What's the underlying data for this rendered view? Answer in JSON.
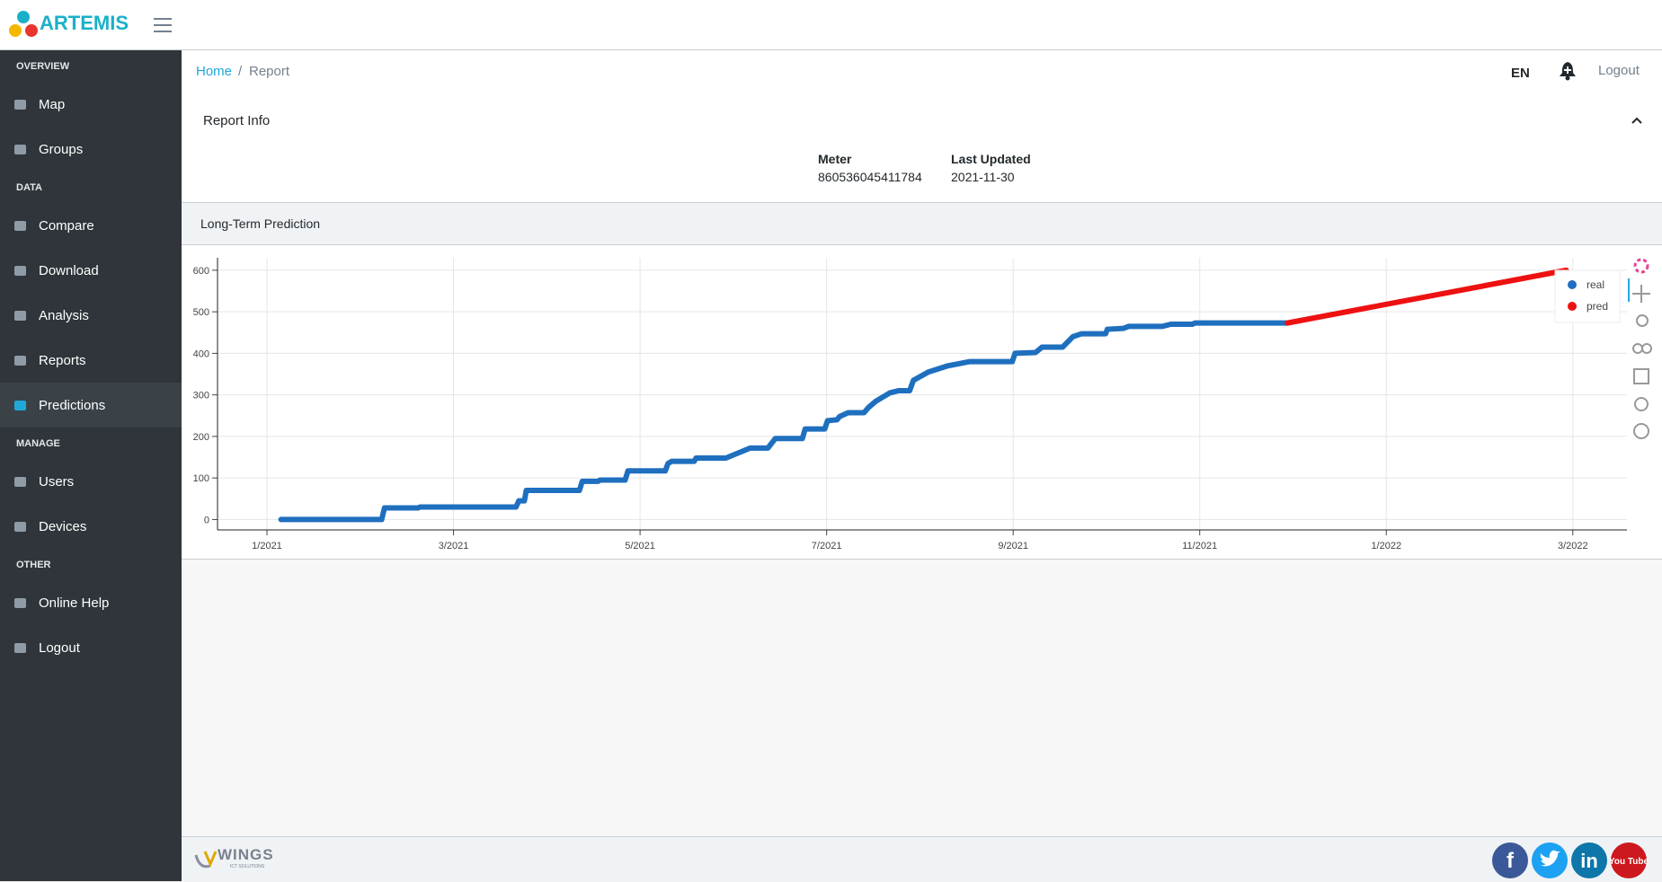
{
  "header": {
    "brand": "ARTEMIS"
  },
  "sidebar": {
    "sections": [
      {
        "title": "OVERVIEW",
        "items": [
          "Map",
          "Groups"
        ]
      },
      {
        "title": "DATA",
        "items": [
          "Compare",
          "Download",
          "Analysis",
          "Reports",
          "Predictions"
        ]
      },
      {
        "title": "MANAGE",
        "items": [
          "Users",
          "Devices"
        ]
      },
      {
        "title": "OTHER",
        "items": [
          "Online Help",
          "Logout"
        ]
      }
    ],
    "active": "Predictions"
  },
  "breadcrumb": {
    "items": [
      "Home",
      "Report"
    ],
    "separator": "/"
  },
  "topbar": {
    "language": "EN",
    "logout": "Logout"
  },
  "report_info": {
    "title": "Report Info",
    "fields": [
      {
        "label": "Meter",
        "value": "860536045411784"
      },
      {
        "label": "Last Updated",
        "value": "2021-11-30"
      }
    ]
  },
  "chart_panel": {
    "title": "Long-Term Prediction"
  },
  "chart_data": {
    "type": "line",
    "series": [
      {
        "name": "real",
        "color": "#1f6fbf",
        "x": [
          0.15,
          1.23,
          1.26,
          1.62,
          1.64,
          2.67,
          2.7,
          2.76,
          2.78,
          3.35,
          3.38,
          3.55,
          3.57,
          3.84,
          3.87,
          4.27,
          4.3,
          4.34,
          4.58,
          4.6,
          4.92,
          5.18,
          5.37,
          5.45,
          5.74,
          5.77,
          5.98,
          6.01,
          6.11,
          6.14,
          6.23,
          6.4,
          6.45,
          6.53,
          6.68,
          6.77,
          6.89,
          6.93,
          7.09,
          7.3,
          7.53,
          7.99,
          8.02,
          8.24,
          8.31,
          8.53,
          8.64,
          8.73,
          8.99,
          9.01,
          9.18,
          9.24,
          9.6,
          9.69,
          9.92,
          9.95,
          10.94
        ],
        "values": [
          0,
          0,
          28,
          28,
          30,
          30,
          45,
          45,
          70,
          70,
          92,
          92,
          95,
          95,
          117,
          117,
          135,
          140,
          140,
          148,
          148,
          172,
          172,
          195,
          195,
          218,
          218,
          238,
          240,
          248,
          257,
          257,
          270,
          285,
          305,
          310,
          310,
          335,
          355,
          370,
          380,
          380,
          400,
          402,
          415,
          415,
          440,
          447,
          447,
          458,
          460,
          465,
          465,
          470,
          470,
          473,
          473
        ]
      },
      {
        "name": "pred",
        "color": "#ee1111",
        "x": [
          10.94,
          13.93
        ],
        "values": [
          473,
          600
        ]
      }
    ],
    "xlim": [
      -0.53,
      14.58
    ],
    "xticks": [
      {
        "value": 0,
        "label": "1/2021"
      },
      {
        "value": 2,
        "label": "3/2021"
      },
      {
        "value": 4,
        "label": "5/2021"
      },
      {
        "value": 6,
        "label": "7/2021"
      },
      {
        "value": 8,
        "label": "9/2021"
      },
      {
        "value": 10,
        "label": "11/2021"
      },
      {
        "value": 12,
        "label": "1/2022"
      },
      {
        "value": 14,
        "label": "3/2022"
      }
    ],
    "ylim": [
      -25,
      630
    ],
    "yticks": [
      0,
      100,
      200,
      300,
      400,
      500,
      600
    ],
    "grid": true,
    "legend": "top-right"
  },
  "footer": {
    "logo": "WINGS",
    "logo_sub": "ICT SOLUTIONS",
    "social": {
      "facebook": "f",
      "linkedin": "in",
      "youtube": "You Tube"
    }
  }
}
